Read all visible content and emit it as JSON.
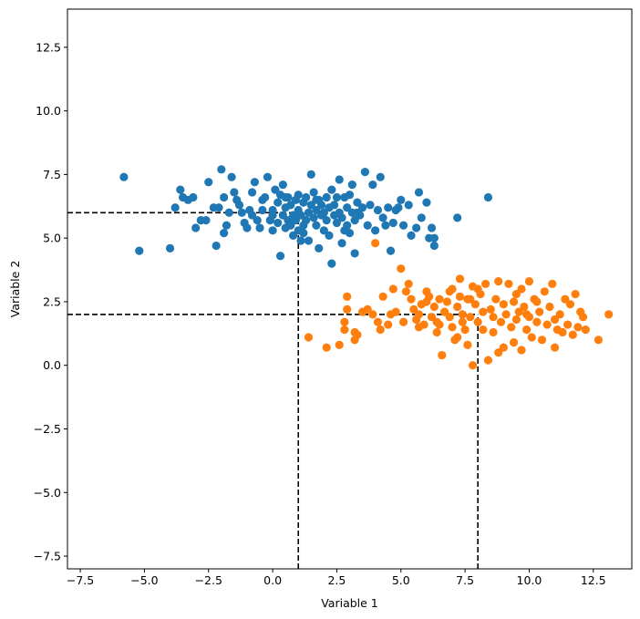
{
  "chart_data": {
    "type": "scatter",
    "title": "",
    "xlabel": "Variable 1",
    "ylabel": "Variable 2",
    "xlim": [
      -8,
      14
    ],
    "ylim": [
      -8,
      14
    ],
    "xticks": [
      -7.5,
      -5.0,
      -2.5,
      0.0,
      2.5,
      5.0,
      7.5,
      10.0,
      12.5
    ],
    "yticks": [
      -7.5,
      -5.0,
      -2.5,
      0.0,
      2.5,
      5.0,
      7.5,
      10.0,
      12.5
    ],
    "xtick_labels": [
      "−7.5",
      "−5.0",
      "−2.5",
      "0.0",
      "2.5",
      "5.0",
      "7.5",
      "10.0",
      "12.5"
    ],
    "ytick_labels": [
      "−7.5",
      "−5.0",
      "−2.5",
      "0.0",
      "2.5",
      "5.0",
      "7.5",
      "10.0",
      "12.5"
    ],
    "grid": false,
    "reference_lines": [
      {
        "x": 1,
        "y": 6,
        "style": "dashed",
        "color": "#000000"
      },
      {
        "x": 8,
        "y": 2,
        "style": "dashed",
        "color": "#000000"
      }
    ],
    "series": [
      {
        "color": "#1f77b4",
        "points": [
          [
            -5.8,
            7.4
          ],
          [
            -5.2,
            4.5
          ],
          [
            -4.0,
            4.6
          ],
          [
            -3.8,
            6.2
          ],
          [
            -3.6,
            6.9
          ],
          [
            -3.5,
            6.6
          ],
          [
            -3.3,
            6.5
          ],
          [
            -3.1,
            6.6
          ],
          [
            -3.0,
            5.4
          ],
          [
            -2.8,
            5.7
          ],
          [
            -2.6,
            5.7
          ],
          [
            -2.5,
            7.2
          ],
          [
            -2.3,
            6.2
          ],
          [
            -2.2,
            4.7
          ],
          [
            -2.1,
            6.2
          ],
          [
            -2.0,
            7.7
          ],
          [
            -1.9,
            6.6
          ],
          [
            -1.8,
            5.5
          ],
          [
            -1.7,
            6.0
          ],
          [
            -1.6,
            7.4
          ],
          [
            -1.5,
            6.8
          ],
          [
            -1.4,
            6.5
          ],
          [
            -1.3,
            6.3
          ],
          [
            -1.2,
            6.0
          ],
          [
            -1.1,
            5.6
          ],
          [
            -1.0,
            5.4
          ],
          [
            -0.9,
            6.1
          ],
          [
            -0.8,
            5.9
          ],
          [
            -0.8,
            6.8
          ],
          [
            -0.7,
            7.2
          ],
          [
            -0.6,
            5.7
          ],
          [
            -0.5,
            5.4
          ],
          [
            -0.4,
            6.5
          ],
          [
            -0.3,
            6.6
          ],
          [
            -0.2,
            7.4
          ],
          [
            -0.1,
            5.7
          ],
          [
            0.0,
            6.1
          ],
          [
            0.0,
            5.3
          ],
          [
            0.1,
            6.9
          ],
          [
            0.2,
            6.4
          ],
          [
            0.2,
            5.6
          ],
          [
            0.3,
            6.7
          ],
          [
            0.3,
            4.3
          ],
          [
            0.4,
            7.1
          ],
          [
            0.4,
            5.9
          ],
          [
            0.5,
            6.2
          ],
          [
            0.5,
            5.4
          ],
          [
            0.6,
            6.6
          ],
          [
            0.6,
            5.7
          ],
          [
            0.7,
            6.3
          ],
          [
            0.7,
            5.5
          ],
          [
            0.8,
            5.9
          ],
          [
            0.8,
            5.1
          ],
          [
            0.9,
            6.5
          ],
          [
            0.9,
            5.7
          ],
          [
            1.0,
            5.3
          ],
          [
            1.0,
            6.1
          ],
          [
            1.1,
            5.9
          ],
          [
            1.1,
            4.9
          ],
          [
            1.2,
            6.4
          ],
          [
            1.2,
            5.5
          ],
          [
            1.3,
            6.6
          ],
          [
            1.3,
            5.7
          ],
          [
            1.4,
            6.0
          ],
          [
            1.4,
            4.9
          ],
          [
            1.5,
            7.5
          ],
          [
            1.5,
            6.3
          ],
          [
            1.6,
            5.8
          ],
          [
            1.6,
            6.8
          ],
          [
            1.7,
            5.5
          ],
          [
            1.7,
            6.1
          ],
          [
            1.8,
            4.6
          ],
          [
            1.8,
            6.5
          ],
          [
            1.9,
            5.9
          ],
          [
            1.9,
            6.3
          ],
          [
            2.0,
            6.0
          ],
          [
            2.0,
            5.3
          ],
          [
            2.1,
            6.6
          ],
          [
            2.1,
            5.7
          ],
          [
            2.2,
            6.2
          ],
          [
            2.2,
            5.1
          ],
          [
            2.3,
            4.0
          ],
          [
            2.3,
            6.9
          ],
          [
            2.4,
            5.9
          ],
          [
            2.4,
            6.3
          ],
          [
            2.5,
            5.6
          ],
          [
            2.6,
            6.0
          ],
          [
            2.6,
            7.3
          ],
          [
            2.7,
            5.8
          ],
          [
            2.7,
            4.8
          ],
          [
            2.8,
            6.6
          ],
          [
            2.9,
            5.5
          ],
          [
            2.9,
            6.2
          ],
          [
            3.0,
            6.7
          ],
          [
            3.0,
            5.2
          ],
          [
            3.1,
            6.0
          ],
          [
            3.1,
            7.1
          ],
          [
            3.2,
            5.7
          ],
          [
            3.2,
            4.4
          ],
          [
            3.3,
            6.4
          ],
          [
            3.4,
            5.9
          ],
          [
            3.5,
            6.2
          ],
          [
            3.6,
            7.6
          ],
          [
            3.7,
            5.5
          ],
          [
            3.8,
            6.3
          ],
          [
            3.9,
            7.1
          ],
          [
            4.0,
            5.3
          ],
          [
            4.1,
            6.1
          ],
          [
            4.2,
            7.4
          ],
          [
            4.3,
            5.8
          ],
          [
            4.4,
            5.5
          ],
          [
            4.5,
            6.2
          ],
          [
            4.6,
            4.5
          ],
          [
            4.7,
            5.6
          ],
          [
            4.8,
            6.1
          ],
          [
            4.9,
            6.2
          ],
          [
            5.0,
            6.5
          ],
          [
            5.1,
            5.5
          ],
          [
            5.3,
            6.3
          ],
          [
            5.4,
            5.1
          ],
          [
            5.6,
            5.4
          ],
          [
            5.7,
            6.8
          ],
          [
            5.8,
            5.8
          ],
          [
            6.0,
            6.4
          ],
          [
            6.1,
            5.0
          ],
          [
            6.2,
            5.4
          ],
          [
            6.3,
            4.7
          ],
          [
            6.3,
            5.0
          ],
          [
            7.2,
            5.8
          ],
          [
            8.4,
            6.6
          ],
          [
            0.0,
            5.9
          ],
          [
            0.5,
            6.6
          ],
          [
            1.0,
            6.7
          ],
          [
            1.2,
            5.2
          ],
          [
            1.7,
            6.5
          ],
          [
            2.5,
            6.6
          ],
          [
            2.8,
            5.3
          ],
          [
            3.3,
            6.0
          ],
          [
            -0.4,
            6.1
          ],
          [
            -1.9,
            5.2
          ]
        ]
      },
      {
        "color": "#ff7f0e",
        "points": [
          [
            1.4,
            1.1
          ],
          [
            2.1,
            0.7
          ],
          [
            2.6,
            0.8
          ],
          [
            2.8,
            1.7
          ],
          [
            2.8,
            1.4
          ],
          [
            2.9,
            2.7
          ],
          [
            2.9,
            2.2
          ],
          [
            3.2,
            1.3
          ],
          [
            3.2,
            1.0
          ],
          [
            3.3,
            1.2
          ],
          [
            3.5,
            2.1
          ],
          [
            3.7,
            2.2
          ],
          [
            3.9,
            2.0
          ],
          [
            4.0,
            4.8
          ],
          [
            4.1,
            1.7
          ],
          [
            4.2,
            1.4
          ],
          [
            4.3,
            2.7
          ],
          [
            4.5,
            1.6
          ],
          [
            4.6,
            2.0
          ],
          [
            4.7,
            3.0
          ],
          [
            4.8,
            2.1
          ],
          [
            5.0,
            3.8
          ],
          [
            5.1,
            1.7
          ],
          [
            5.2,
            2.9
          ],
          [
            5.3,
            3.2
          ],
          [
            5.4,
            2.6
          ],
          [
            5.5,
            2.2
          ],
          [
            5.6,
            1.8
          ],
          [
            5.7,
            1.5
          ],
          [
            5.8,
            2.4
          ],
          [
            5.9,
            1.6
          ],
          [
            6.0,
            2.9
          ],
          [
            6.1,
            2.7
          ],
          [
            6.2,
            1.9
          ],
          [
            6.3,
            2.3
          ],
          [
            6.4,
            1.3
          ],
          [
            6.5,
            1.6
          ],
          [
            6.6,
            0.4
          ],
          [
            6.7,
            2.1
          ],
          [
            6.8,
            2.5
          ],
          [
            6.9,
            1.9
          ],
          [
            7.0,
            3.0
          ],
          [
            7.0,
            1.5
          ],
          [
            7.1,
            1.0
          ],
          [
            7.2,
            2.3
          ],
          [
            7.3,
            2.7
          ],
          [
            7.3,
            3.4
          ],
          [
            7.4,
            2.0
          ],
          [
            7.5,
            1.4
          ],
          [
            7.6,
            0.8
          ],
          [
            7.6,
            2.6
          ],
          [
            7.7,
            1.9
          ],
          [
            7.8,
            3.1
          ],
          [
            7.8,
            0.0
          ],
          [
            7.9,
            2.4
          ],
          [
            8.0,
            1.7
          ],
          [
            8.1,
            2.8
          ],
          [
            8.2,
            1.4
          ],
          [
            8.3,
            3.2
          ],
          [
            8.4,
            0.2
          ],
          [
            8.5,
            2.2
          ],
          [
            8.6,
            1.9
          ],
          [
            8.7,
            2.6
          ],
          [
            8.8,
            0.5
          ],
          [
            8.8,
            3.3
          ],
          [
            8.9,
            1.7
          ],
          [
            9.0,
            2.4
          ],
          [
            9.0,
            0.7
          ],
          [
            9.1,
            2.0
          ],
          [
            9.2,
            3.2
          ],
          [
            9.3,
            1.5
          ],
          [
            9.4,
            2.5
          ],
          [
            9.4,
            0.9
          ],
          [
            9.5,
            1.8
          ],
          [
            9.6,
            2.1
          ],
          [
            9.7,
            0.6
          ],
          [
            9.7,
            3.0
          ],
          [
            9.8,
            2.3
          ],
          [
            9.9,
            1.4
          ],
          [
            10.0,
            3.3
          ],
          [
            10.0,
            1.9
          ],
          [
            10.1,
            1.1
          ],
          [
            10.2,
            2.6
          ],
          [
            10.3,
            1.7
          ],
          [
            10.4,
            2.1
          ],
          [
            10.5,
            1.0
          ],
          [
            10.6,
            2.9
          ],
          [
            10.7,
            1.6
          ],
          [
            10.8,
            2.3
          ],
          [
            10.9,
            3.2
          ],
          [
            11.0,
            0.7
          ],
          [
            11.1,
            1.4
          ],
          [
            11.2,
            2.0
          ],
          [
            11.3,
            1.3
          ],
          [
            11.4,
            2.6
          ],
          [
            11.5,
            1.6
          ],
          [
            11.6,
            2.4
          ],
          [
            11.7,
            1.2
          ],
          [
            11.8,
            2.8
          ],
          [
            11.9,
            1.5
          ],
          [
            12.0,
            2.1
          ],
          [
            12.1,
            1.9
          ],
          [
            12.2,
            1.4
          ],
          [
            12.7,
            1.0
          ],
          [
            13.1,
            2.0
          ],
          [
            6.4,
            1.7
          ],
          [
            6.9,
            2.9
          ],
          [
            7.2,
            1.1
          ],
          [
            8.0,
            3.0
          ],
          [
            9.5,
            2.8
          ],
          [
            10.3,
            2.5
          ],
          [
            6.0,
            2.5
          ],
          [
            5.7,
            2.0
          ],
          [
            7.7,
            2.6
          ],
          [
            8.6,
            1.3
          ],
          [
            9.9,
            2.0
          ],
          [
            11.0,
            1.8
          ],
          [
            6.5,
            2.6
          ],
          [
            7.4,
            1.7
          ],
          [
            8.2,
            2.1
          ]
        ]
      }
    ]
  }
}
